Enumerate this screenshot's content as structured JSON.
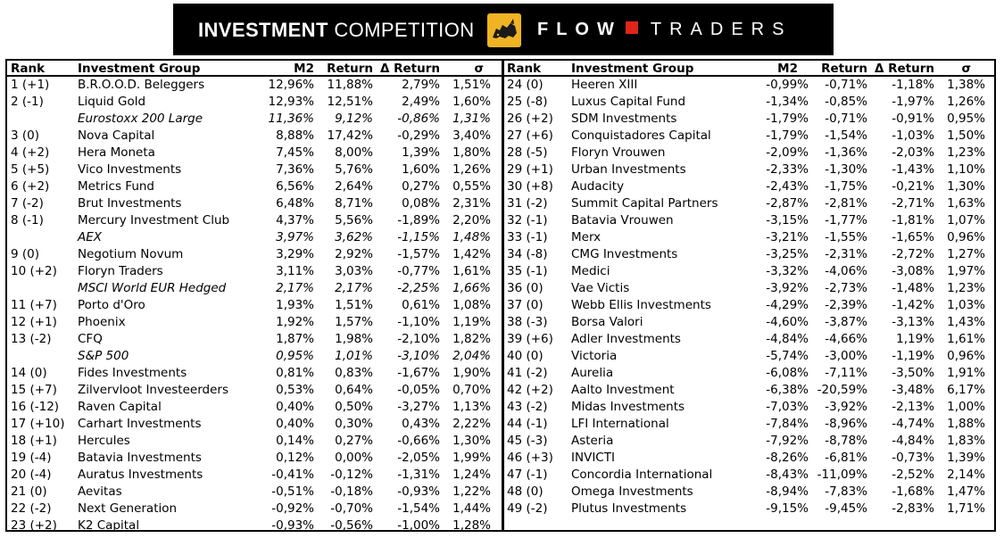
{
  "banner": {
    "title_bold": "INVESTMENT",
    "title_light": "COMPETITION",
    "brand_flow": "FLOW",
    "brand_traders": "TRADERS",
    "logo_icon": "bull-logo-icon",
    "accent_color": "#f0b323",
    "brand_red": "#e1251b"
  },
  "columns": {
    "rank": "Rank",
    "group": "Investment Group",
    "m2": "M2",
    "return": "Return",
    "delta_return": "Δ Return",
    "sigma": "σ"
  },
  "left_rows": [
    {
      "rank": "1 (+1)",
      "group": "B.R.O.O.D. Beleggers",
      "m2": "12,96%",
      "ret": "11,88%",
      "dret": "2,79%",
      "sigma": "1,51%",
      "bench": false
    },
    {
      "rank": "2 (-1)",
      "group": "Liquid Gold",
      "m2": "12,93%",
      "ret": "12,51%",
      "dret": "2,49%",
      "sigma": "1,60%",
      "bench": false
    },
    {
      "rank": "",
      "group": "Eurostoxx 200 Large",
      "m2": "11,36%",
      "ret": "9,12%",
      "dret": "-0,86%",
      "sigma": "1,31%",
      "bench": true
    },
    {
      "rank": "3 (0)",
      "group": "Nova Capital",
      "m2": "8,88%",
      "ret": "17,42%",
      "dret": "-0,29%",
      "sigma": "3,40%",
      "bench": false
    },
    {
      "rank": "4 (+2)",
      "group": "Hera Moneta",
      "m2": "7,45%",
      "ret": "8,00%",
      "dret": "1,39%",
      "sigma": "1,80%",
      "bench": false
    },
    {
      "rank": "5 (+5)",
      "group": "Vico Investments",
      "m2": "7,36%",
      "ret": "5,76%",
      "dret": "1,60%",
      "sigma": "1,26%",
      "bench": false
    },
    {
      "rank": "6 (+2)",
      "group": "Metrics Fund",
      "m2": "6,56%",
      "ret": "2,64%",
      "dret": "0,27%",
      "sigma": "0,55%",
      "bench": false
    },
    {
      "rank": "7 (-2)",
      "group": "Brut Investments",
      "m2": "6,48%",
      "ret": "8,71%",
      "dret": "0,08%",
      "sigma": "2,31%",
      "bench": false
    },
    {
      "rank": "8 (-1)",
      "group": "Mercury Investment Club",
      "m2": "4,37%",
      "ret": "5,56%",
      "dret": "-1,89%",
      "sigma": "2,20%",
      "bench": false
    },
    {
      "rank": "",
      "group": "AEX",
      "m2": "3,97%",
      "ret": "3,62%",
      "dret": "-1,15%",
      "sigma": "1,48%",
      "bench": true
    },
    {
      "rank": "9 (0)",
      "group": "Negotium Novum",
      "m2": "3,29%",
      "ret": "2,92%",
      "dret": "-1,57%",
      "sigma": "1,42%",
      "bench": false
    },
    {
      "rank": "10 (+2)",
      "group": "Floryn Traders",
      "m2": "3,11%",
      "ret": "3,03%",
      "dret": "-0,77%",
      "sigma": "1,61%",
      "bench": false
    },
    {
      "rank": "",
      "group": "MSCI World EUR Hedged",
      "m2": "2,17%",
      "ret": "2,17%",
      "dret": "-2,25%",
      "sigma": "1,66%",
      "bench": true
    },
    {
      "rank": "11 (+7)",
      "group": "Porto d'Oro",
      "m2": "1,93%",
      "ret": "1,51%",
      "dret": "0,61%",
      "sigma": "1,08%",
      "bench": false
    },
    {
      "rank": "12 (+1)",
      "group": "Phoenix",
      "m2": "1,92%",
      "ret": "1,57%",
      "dret": "-1,10%",
      "sigma": "1,19%",
      "bench": false
    },
    {
      "rank": "13 (-2)",
      "group": "CFQ",
      "m2": "1,87%",
      "ret": "1,98%",
      "dret": "-2,10%",
      "sigma": "1,82%",
      "bench": false
    },
    {
      "rank": "",
      "group": "S&P 500",
      "m2": "0,95%",
      "ret": "1,01%",
      "dret": "-3,10%",
      "sigma": "2,04%",
      "bench": true
    },
    {
      "rank": "14 (0)",
      "group": "Fides Investments",
      "m2": "0,81%",
      "ret": "0,83%",
      "dret": "-1,67%",
      "sigma": "1,90%",
      "bench": false
    },
    {
      "rank": "15 (+7)",
      "group": "Zilvervloot Investeerders",
      "m2": "0,53%",
      "ret": "0,64%",
      "dret": "-0,05%",
      "sigma": "0,70%",
      "bench": false
    },
    {
      "rank": "16 (-12)",
      "group": "Raven Capital",
      "m2": "0,40%",
      "ret": "0,50%",
      "dret": "-3,27%",
      "sigma": "1,13%",
      "bench": false
    },
    {
      "rank": "17 (+10)",
      "group": "Carhart Investments",
      "m2": "0,40%",
      "ret": "0,30%",
      "dret": "0,43%",
      "sigma": "2,22%",
      "bench": false
    },
    {
      "rank": "18 (+1)",
      "group": "Hercules",
      "m2": "0,14%",
      "ret": "0,27%",
      "dret": "-0,66%",
      "sigma": "1,30%",
      "bench": false
    },
    {
      "rank": "19 (-4)",
      "group": "Batavia Investments",
      "m2": "0,12%",
      "ret": "0,00%",
      "dret": "-2,05%",
      "sigma": "1,99%",
      "bench": false
    },
    {
      "rank": "20 (-4)",
      "group": "Auratus Investments",
      "m2": "-0,41%",
      "ret": "-0,12%",
      "dret": "-1,31%",
      "sigma": "1,24%",
      "bench": false
    },
    {
      "rank": "21 (0)",
      "group": "Aevitas",
      "m2": "-0,51%",
      "ret": "-0,18%",
      "dret": "-0,93%",
      "sigma": "1,22%",
      "bench": false
    },
    {
      "rank": "22 (-2)",
      "group": "Next Generation",
      "m2": "-0,92%",
      "ret": "-0,70%",
      "dret": "-1,54%",
      "sigma": "1,44%",
      "bench": false
    },
    {
      "rank": "23 (+2)",
      "group": "K2 Capital",
      "m2": "-0,93%",
      "ret": "-0,56%",
      "dret": "-1,00%",
      "sigma": "1,28%",
      "bench": false
    }
  ],
  "right_rows": [
    {
      "rank": "24 (0)",
      "group": "Heeren XIII",
      "m2": "-0,99%",
      "ret": "-0,71%",
      "dret": "-1,18%",
      "sigma": "1,38%",
      "bench": false
    },
    {
      "rank": "25 (-8)",
      "group": "Luxus Capital Fund",
      "m2": "-1,34%",
      "ret": "-0,85%",
      "dret": "-1,97%",
      "sigma": "1,26%",
      "bench": false
    },
    {
      "rank": "26 (+2)",
      "group": "SDM Investments",
      "m2": "-1,79%",
      "ret": "-0,71%",
      "dret": "-0,91%",
      "sigma": "0,95%",
      "bench": false
    },
    {
      "rank": "27 (+6)",
      "group": "Conquistadores Capital",
      "m2": "-1,79%",
      "ret": "-1,54%",
      "dret": "-1,03%",
      "sigma": "1,50%",
      "bench": false
    },
    {
      "rank": "28 (-5)",
      "group": "Floryn Vrouwen",
      "m2": "-2,09%",
      "ret": "-1,36%",
      "dret": "-2,03%",
      "sigma": "1,23%",
      "bench": false
    },
    {
      "rank": "29 (+1)",
      "group": "Urban Investments",
      "m2": "-2,33%",
      "ret": "-1,30%",
      "dret": "-1,43%",
      "sigma": "1,10%",
      "bench": false
    },
    {
      "rank": "30 (+8)",
      "group": "Audacity",
      "m2": "-2,43%",
      "ret": "-1,75%",
      "dret": "-0,21%",
      "sigma": "1,30%",
      "bench": false
    },
    {
      "rank": "31 (-2)",
      "group": "Summit Capital Partners",
      "m2": "-2,87%",
      "ret": "-2,81%",
      "dret": "-2,71%",
      "sigma": "1,63%",
      "bench": false
    },
    {
      "rank": "32 (-1)",
      "group": "Batavia Vrouwen",
      "m2": "-3,15%",
      "ret": "-1,77%",
      "dret": "-1,81%",
      "sigma": "1,07%",
      "bench": false
    },
    {
      "rank": "33 (-1)",
      "group": "Merx",
      "m2": "-3,21%",
      "ret": "-1,55%",
      "dret": "-1,65%",
      "sigma": "0,96%",
      "bench": false
    },
    {
      "rank": "34 (-8)",
      "group": "CMG Investments",
      "m2": "-3,25%",
      "ret": "-2,31%",
      "dret": "-2,72%",
      "sigma": "1,27%",
      "bench": false
    },
    {
      "rank": "35 (-1)",
      "group": "Medici",
      "m2": "-3,32%",
      "ret": "-4,06%",
      "dret": "-3,08%",
      "sigma": "1,97%",
      "bench": false
    },
    {
      "rank": "36 (0)",
      "group": "Vae Victis",
      "m2": "-3,92%",
      "ret": "-2,73%",
      "dret": "-1,48%",
      "sigma": "1,23%",
      "bench": false
    },
    {
      "rank": "37 (0)",
      "group": "Webb Ellis Investments",
      "m2": "-4,29%",
      "ret": "-2,39%",
      "dret": "-1,42%",
      "sigma": "1,03%",
      "bench": false
    },
    {
      "rank": "38 (-3)",
      "group": "Borsa Valori",
      "m2": "-4,60%",
      "ret": "-3,87%",
      "dret": "-3,13%",
      "sigma": "1,43%",
      "bench": false
    },
    {
      "rank": "39 (+6)",
      "group": "Adler Investments",
      "m2": "-4,84%",
      "ret": "-4,66%",
      "dret": "1,19%",
      "sigma": "1,61%",
      "bench": false
    },
    {
      "rank": "40 (0)",
      "group": "Victoria",
      "m2": "-5,74%",
      "ret": "-3,00%",
      "dret": "-1,19%",
      "sigma": "0,96%",
      "bench": false
    },
    {
      "rank": "41 (-2)",
      "group": "Aurelia",
      "m2": "-6,08%",
      "ret": "-7,11%",
      "dret": "-3,50%",
      "sigma": "1,91%",
      "bench": false
    },
    {
      "rank": "42 (+2)",
      "group": "Aalto Investment",
      "m2": "-6,38%",
      "ret": "-20,59%",
      "dret": "-3,48%",
      "sigma": "6,17%",
      "bench": false
    },
    {
      "rank": "43 (-2)",
      "group": "Midas Investments",
      "m2": "-7,03%",
      "ret": "-3,92%",
      "dret": "-2,13%",
      "sigma": "1,00%",
      "bench": false
    },
    {
      "rank": "44 (-1)",
      "group": "LFI International",
      "m2": "-7,84%",
      "ret": "-8,96%",
      "dret": "-4,74%",
      "sigma": "1,88%",
      "bench": false
    },
    {
      "rank": "45 (-3)",
      "group": "Asteria",
      "m2": "-7,92%",
      "ret": "-8,78%",
      "dret": "-4,84%",
      "sigma": "1,83%",
      "bench": false
    },
    {
      "rank": "46 (+3)",
      "group": "INVICTI",
      "m2": "-8,26%",
      "ret": "-6,81%",
      "dret": "-0,73%",
      "sigma": "1,39%",
      "bench": false
    },
    {
      "rank": "47 (-1)",
      "group": "Concordia International",
      "m2": "-8,43%",
      "ret": "-11,09%",
      "dret": "-2,52%",
      "sigma": "2,14%",
      "bench": false
    },
    {
      "rank": "48 (0)",
      "group": "Omega Investments",
      "m2": "-8,94%",
      "ret": "-7,83%",
      "dret": "-1,68%",
      "sigma": "1,47%",
      "bench": false
    },
    {
      "rank": "49 (-2)",
      "group": "Plutus Investments",
      "m2": "-9,15%",
      "ret": "-9,45%",
      "dret": "-2,83%",
      "sigma": "1,71%",
      "bench": false
    }
  ]
}
